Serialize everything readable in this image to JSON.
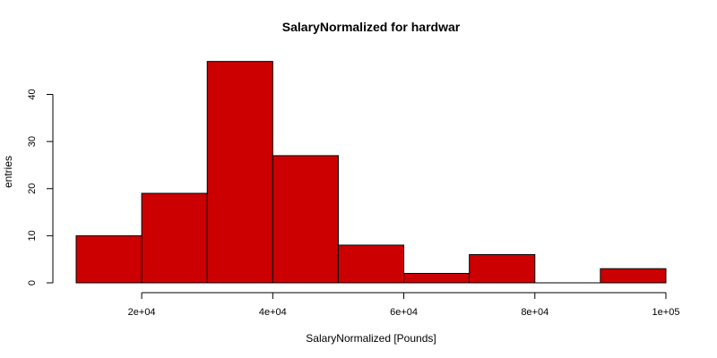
{
  "chart_data": {
    "type": "bar",
    "title": "SalaryNormalized for hardwar",
    "xlabel": "SalaryNormalized [Pounds]",
    "ylabel": "entries",
    "bin_edges": [
      10000,
      20000,
      30000,
      40000,
      50000,
      60000,
      70000,
      80000,
      90000,
      100000
    ],
    "values": [
      10,
      19,
      47,
      27,
      8,
      2,
      6,
      0,
      3
    ],
    "xlim": [
      10000,
      100000
    ],
    "ylim": [
      0,
      50
    ],
    "x_ticks": [
      20000,
      40000,
      60000,
      80000,
      100000
    ],
    "x_tick_labels": [
      "2e+04",
      "4e+04",
      "6e+04",
      "8e+04",
      "1e+05"
    ],
    "y_ticks": [
      0,
      10,
      20,
      30,
      40
    ],
    "y_tick_labels": [
      "0",
      "10",
      "20",
      "30",
      "40"
    ],
    "bar_color": "#cc0000",
    "grid": false,
    "legend": "none"
  }
}
